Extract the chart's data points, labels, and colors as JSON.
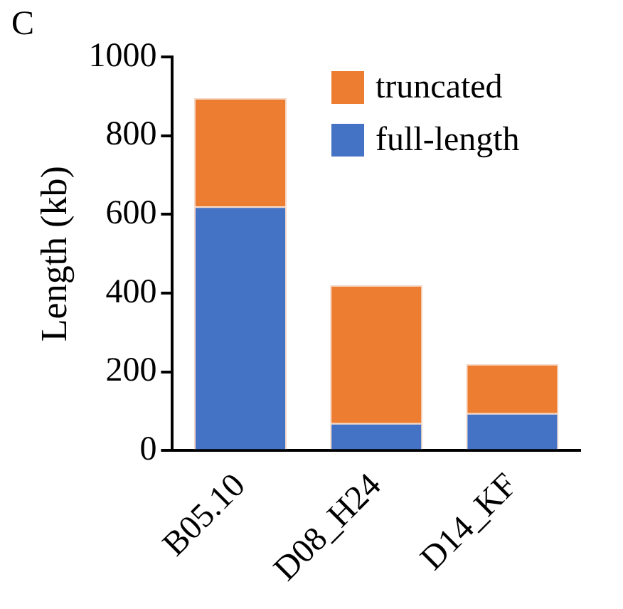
{
  "chart_data": {
    "type": "bar",
    "stacked": true,
    "ylabel": "Length (kb)",
    "annotations": [
      "C"
    ],
    "categories": [
      "B05.10",
      "D08_H24",
      "D14_KF"
    ],
    "series": [
      {
        "name": "full-length",
        "color": "#4472c4",
        "values": [
          620,
          70,
          95
        ]
      },
      {
        "name": "truncated",
        "color": "#ed7d31",
        "values": [
          275,
          350,
          125
        ]
      }
    ],
    "ylim": [
      0,
      1000
    ],
    "yticks": [
      0,
      200,
      400,
      600,
      800,
      1000
    ],
    "grid": false,
    "legend": "top right"
  }
}
